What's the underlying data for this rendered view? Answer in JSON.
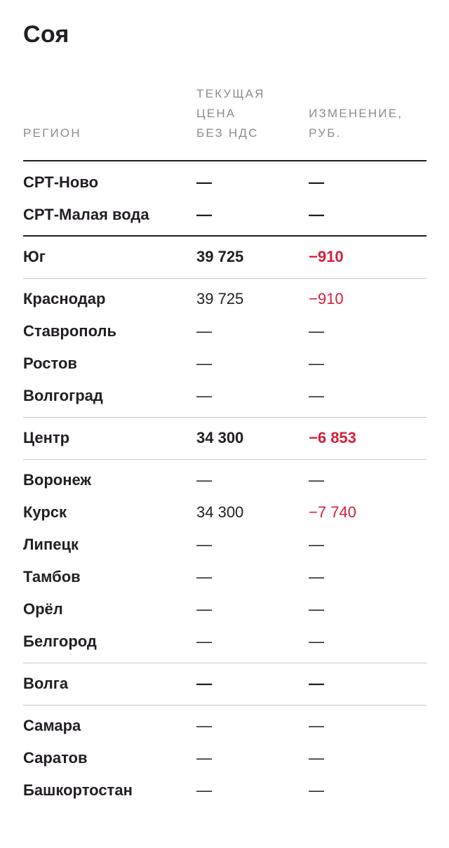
{
  "title": "Соя",
  "columns": {
    "region": "Регион",
    "price": "Текущая\nцена\nбез НДС",
    "change": "Изменение,\nруб."
  },
  "rows": [
    {
      "region": "СРТ-Ново",
      "price": "—",
      "change": "—",
      "group": true,
      "negative": false
    },
    {
      "region": "СРТ-Малая вода",
      "price": "—",
      "change": "—",
      "group": true,
      "negative": false
    },
    {
      "region": "Юг",
      "price": "39 725",
      "change": "−910",
      "group": true,
      "negative": true
    },
    {
      "region": "Краснодар",
      "price": "39 725",
      "change": "−910",
      "group": false,
      "negative": true
    },
    {
      "region": "Ставрополь",
      "price": "—",
      "change": "—",
      "group": false,
      "negative": false
    },
    {
      "region": "Ростов",
      "price": "—",
      "change": "—",
      "group": false,
      "negative": false
    },
    {
      "region": "Волгоград",
      "price": "—",
      "change": "—",
      "group": false,
      "negative": false
    },
    {
      "region": "Центр",
      "price": "34 300",
      "change": "−6 853",
      "group": true,
      "negative": true
    },
    {
      "region": "Воронеж",
      "price": "—",
      "change": "—",
      "group": false,
      "negative": false
    },
    {
      "region": "Курск",
      "price": "34 300",
      "change": "−7 740",
      "group": false,
      "negative": true
    },
    {
      "region": "Липецк",
      "price": "—",
      "change": "—",
      "group": false,
      "negative": false
    },
    {
      "region": "Тамбов",
      "price": "—",
      "change": "—",
      "group": false,
      "negative": false
    },
    {
      "region": "Орёл",
      "price": "—",
      "change": "—",
      "group": false,
      "negative": false
    },
    {
      "region": "Белгород",
      "price": "—",
      "change": "—",
      "group": false,
      "negative": false
    },
    {
      "region": "Волга",
      "price": "—",
      "change": "—",
      "group": true,
      "negative": false
    },
    {
      "region": "Самара",
      "price": "—",
      "change": "—",
      "group": false,
      "negative": false
    },
    {
      "region": "Саратов",
      "price": "—",
      "change": "—",
      "group": false,
      "negative": false
    },
    {
      "region": "Башкортостан",
      "price": "—",
      "change": "—",
      "group": false,
      "negative": false
    }
  ],
  "colors": {
    "text": "#231d24",
    "muted": "#8d8a8f",
    "negative": "#d41f3a",
    "divider": "#c9c7ca"
  }
}
